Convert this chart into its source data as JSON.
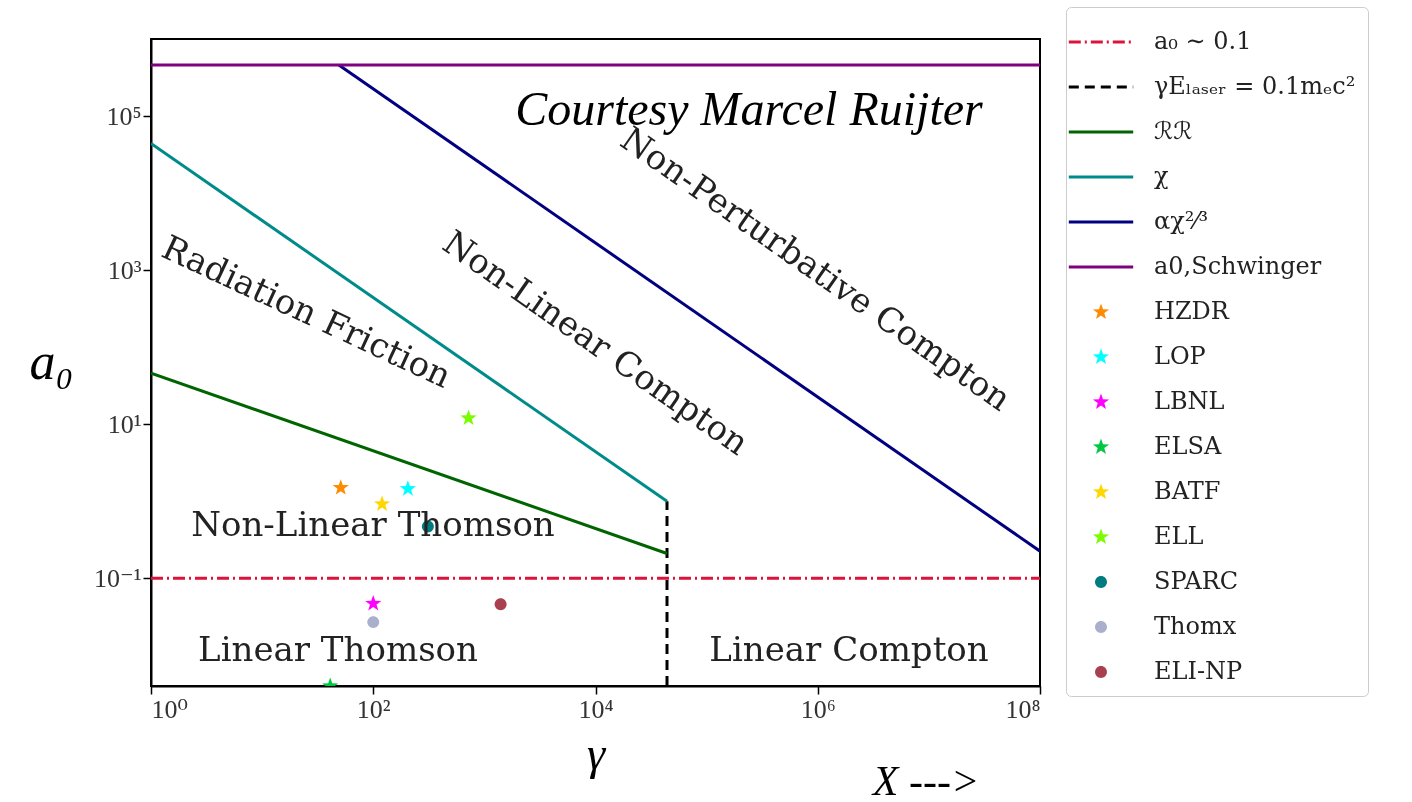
{
  "chart_data": {
    "type": "line",
    "xlabel": "γ",
    "ylabel": "a₀",
    "log": "xy",
    "grid": false,
    "legend": "right",
    "xlim": [
      1,
      100000000
    ],
    "xticks": [
      {
        "value": 1,
        "label": "10⁰"
      },
      {
        "value": 100,
        "label": "10²"
      },
      {
        "value": 10000,
        "label": "10⁴"
      },
      {
        "value": 1000000,
        "label": "10⁶"
      },
      {
        "value": 100000000,
        "label": "10⁸"
      }
    ],
    "ylim": [
      0.004,
      1000000
    ],
    "yticks": [
      {
        "value": 0.1,
        "label": "10⁻¹"
      },
      {
        "value": 10,
        "label": "10¹"
      },
      {
        "value": 1000,
        "label": "10³"
      },
      {
        "value": 100000,
        "label": "10⁵"
      }
    ],
    "series": [
      {
        "name": "a₀ ∼ 0.1",
        "line_style": "dashdot",
        "color": "#dc143c",
        "x": [
          1,
          100000000
        ],
        "values": [
          0.1,
          0.1
        ]
      },
      {
        "name": "γEₗₐₛₑᵣ = 0.1mₑc²",
        "line_style": "dashed",
        "color": "#000000",
        "x": [
          44000,
          44000
        ],
        "values": [
          0.004,
          1
        ]
      },
      {
        "name": "ℛℛ",
        "line_style": "solid",
        "color": "#006400",
        "x": [
          1,
          44000
        ],
        "values": [
          46,
          0.21
        ]
      },
      {
        "name": "χ",
        "line_style": "solid",
        "color": "#008b8b",
        "x": [
          1,
          44000
        ],
        "values": [
          44000,
          1
        ]
      },
      {
        "name": "αχ²⁄³",
        "line_style": "solid",
        "color": "#000080",
        "x": [
          49,
          100000000
        ],
        "values": [
          460000,
          0.225
        ]
      },
      {
        "name": "a0,Schwinger",
        "line_style": "solid",
        "color": "#800080",
        "x": [
          1,
          100000000
        ],
        "values": [
          460000,
          460000
        ]
      },
      {
        "name": "HZDR",
        "type": "scatter",
        "marker": "star",
        "color": "#ff8c00",
        "x": [
          51
        ],
        "values": [
          1.5
        ]
      },
      {
        "name": "LOP",
        "type": "scatter",
        "marker": "star",
        "color": "#00ffff",
        "x": [
          205
        ],
        "values": [
          1.45
        ]
      },
      {
        "name": "LBNL",
        "type": "scatter",
        "marker": "star",
        "color": "#ff00ff",
        "x": [
          100
        ],
        "values": [
          0.047
        ]
      },
      {
        "name": "ELSA",
        "type": "scatter",
        "marker": "star",
        "color": "#00c840",
        "x": [
          41
        ],
        "values": [
          0.004
        ]
      },
      {
        "name": "BATF",
        "type": "scatter",
        "marker": "star",
        "color": "#ffd700",
        "x": [
          120
        ],
        "values": [
          0.92
        ]
      },
      {
        "name": "ELL",
        "type": "scatter",
        "marker": "star",
        "color": "#7cfc00",
        "x": [
          720
        ],
        "values": [
          12
        ]
      },
      {
        "name": "SPARC",
        "type": "scatter",
        "marker": "circle",
        "color": "#007b80",
        "x": [
          310
        ],
        "values": [
          0.47
        ]
      },
      {
        "name": "Thomx",
        "type": "scatter",
        "marker": "circle",
        "color": "#aab0cc",
        "x": [
          100
        ],
        "values": [
          0.027
        ]
      },
      {
        "name": "ELI-NP",
        "type": "scatter",
        "marker": "circle",
        "color": "#a8404f",
        "x": [
          1400
        ],
        "values": [
          0.046
        ]
      }
    ],
    "annotations": [
      "Radiation Friction",
      "Non-Linear Compton",
      "Non-Perturbative Compton",
      "Non-Linear Thomson",
      "Linear Thomson",
      "Linear Compton",
      "Courtesy Marcel Ruijter",
      "X --->"
    ]
  }
}
